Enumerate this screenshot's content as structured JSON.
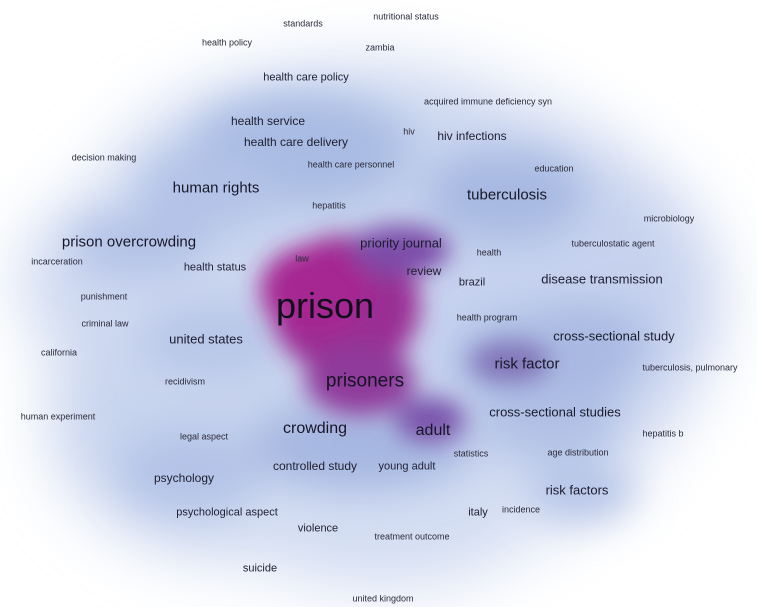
{
  "terms": {
    "prison": "prison",
    "prisoners": "prisoners",
    "adult": "adult",
    "crowding": "crowding",
    "risk_factor": "risk factor",
    "tuberculosis": "tuberculosis",
    "cross_sectional_study": "cross-sectional study",
    "cross_sectional_studies": "cross-sectional studies",
    "risk_factors": "risk factors",
    "disease_transmission": "disease transmission",
    "human_rights": "human rights",
    "prison_overcrowding": "prison overcrowding",
    "united_states": "united states",
    "priority_journal": "priority journal",
    "review": "review",
    "health_status": "health status",
    "health_service": "health service",
    "health_care_delivery": "health care delivery",
    "health_care_policy": "health care policy",
    "hiv_infections": "hiv infections",
    "controlled_study": "controlled study",
    "young_adult": "young adult",
    "psychology": "psychology",
    "psychological_aspect": "psychological aspect",
    "violence": "violence",
    "suicide": "suicide",
    "brazil": "brazil",
    "italy": "italy",
    "standards": "standards",
    "nutritional_status": "nutritional status",
    "health_policy": "health policy",
    "zambia": "zambia",
    "acquired_immune": "acquired immune deficiency syn",
    "hiv": "hiv",
    "decision_making": "decision making",
    "health_care_personnel": "health care personnel",
    "education": "education",
    "hepatitis": "hepatitis",
    "microbiology": "microbiology",
    "tuberculostatic_agent": "tuberculostatic agent",
    "health": "health",
    "law": "law",
    "incarceration": "incarceration",
    "punishment": "punishment",
    "criminal_law": "criminal law",
    "health_program": "health program",
    "california": "california",
    "tuberculosis_pulmonary": "tuberculosis, pulmonary",
    "recidivism": "recidivism",
    "human_experiment": "human experiment",
    "legal_aspect": "legal aspect",
    "hepatitis_b": "hepatitis b",
    "statistics": "statistics",
    "age_distribution": "age distribution",
    "incidence": "incidence",
    "treatment_outcome": "treatment outcome",
    "united_kingdom": "united kingdom"
  },
  "colors": {
    "density_low": "#c9d6ef",
    "density_mid": "#9fb2df",
    "density_high": "#8e1f8f",
    "label": "#1d1a2e"
  }
}
